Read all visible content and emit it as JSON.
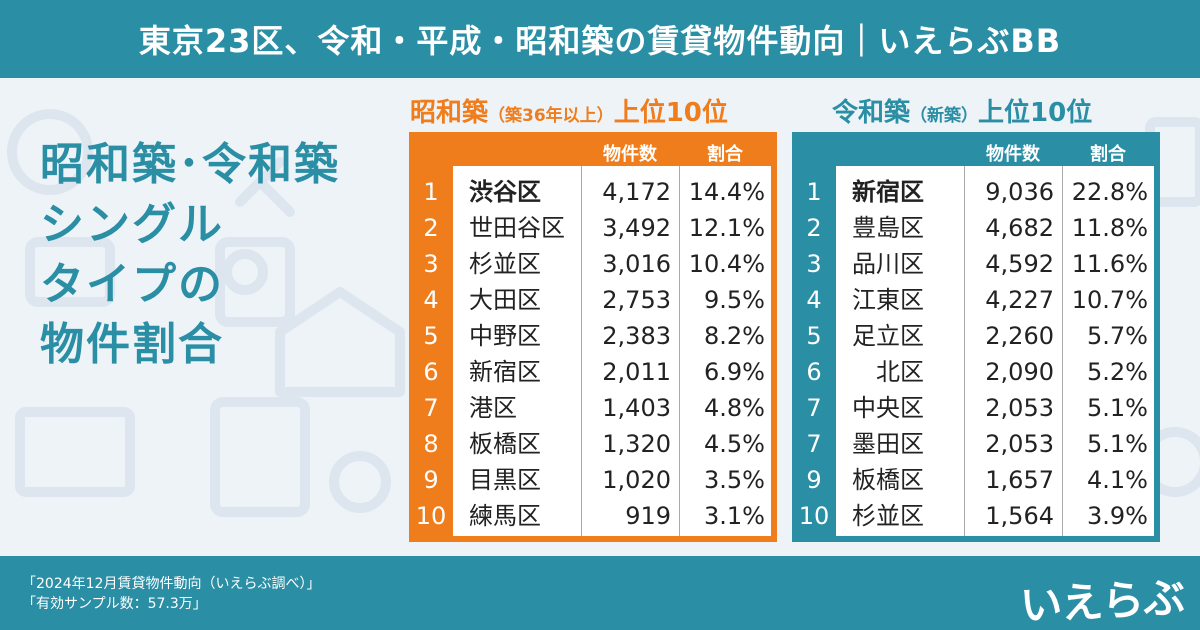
{
  "header": {
    "title": "東京23区、令和・平成・昭和築の賃貸物件動向｜いえらぶBB"
  },
  "headline": {
    "lines": [
      "昭和築･令和築",
      "シングル",
      "タイプの",
      "物件割合"
    ]
  },
  "showa": {
    "title_main": "昭和築",
    "title_sub": "（築36年以上）",
    "title_rank": "上位10位",
    "col_count": "物件数",
    "col_pct": "割合",
    "accent": "#f07d1b",
    "rows": [
      {
        "rank": "1",
        "ward": "渋谷区",
        "count": "4,172",
        "pct": "14.4%"
      },
      {
        "rank": "2",
        "ward": "世田谷区",
        "count": "3,492",
        "pct": "12.1%"
      },
      {
        "rank": "3",
        "ward": "杉並区",
        "count": "3,016",
        "pct": "10.4%"
      },
      {
        "rank": "4",
        "ward": "大田区",
        "count": "2,753",
        "pct": "9.5%"
      },
      {
        "rank": "5",
        "ward": "中野区",
        "count": "2,383",
        "pct": "8.2%"
      },
      {
        "rank": "6",
        "ward": "新宿区",
        "count": "2,011",
        "pct": "6.9%"
      },
      {
        "rank": "7",
        "ward": "港区",
        "count": "1,403",
        "pct": "4.8%"
      },
      {
        "rank": "8",
        "ward": "板橋区",
        "count": "1,320",
        "pct": "4.5%"
      },
      {
        "rank": "9",
        "ward": "目黒区",
        "count": "1,020",
        "pct": "3.5%"
      },
      {
        "rank": "10",
        "ward": "練馬区",
        "count": "919",
        "pct": "3.1%"
      }
    ]
  },
  "reiwa": {
    "title_main": "令和築",
    "title_sub": "（新築）",
    "title_rank": "上位10位",
    "col_count": "物件数",
    "col_pct": "割合",
    "accent": "#2a8ea5",
    "rows": [
      {
        "rank": "1",
        "ward": "新宿区",
        "count": "9,036",
        "pct": "22.8%"
      },
      {
        "rank": "2",
        "ward": "豊島区",
        "count": "4,682",
        "pct": "11.8%"
      },
      {
        "rank": "3",
        "ward": "品川区",
        "count": "4,592",
        "pct": "11.6%"
      },
      {
        "rank": "4",
        "ward": "江東区",
        "count": "4,227",
        "pct": "10.7%"
      },
      {
        "rank": "5",
        "ward": "足立区",
        "count": "2,260",
        "pct": "5.7%"
      },
      {
        "rank": "6",
        "ward": "北区",
        "count": "2,090",
        "pct": "5.2%"
      },
      {
        "rank": "7",
        "ward": "中央区",
        "count": "2,053",
        "pct": "5.1%"
      },
      {
        "rank": "7",
        "ward": "墨田区",
        "count": "2,053",
        "pct": "5.1%"
      },
      {
        "rank": "9",
        "ward": "板橋区",
        "count": "1,657",
        "pct": "4.1%"
      },
      {
        "rank": "10",
        "ward": "杉並区",
        "count": "1,564",
        "pct": "3.9%"
      }
    ]
  },
  "footer": {
    "note1": "「2024年12月賃貸物件動向（いえらぶ調べ）」",
    "note2": "「有効サンプル数：57.3万」",
    "logo": "いえらぶ"
  }
}
